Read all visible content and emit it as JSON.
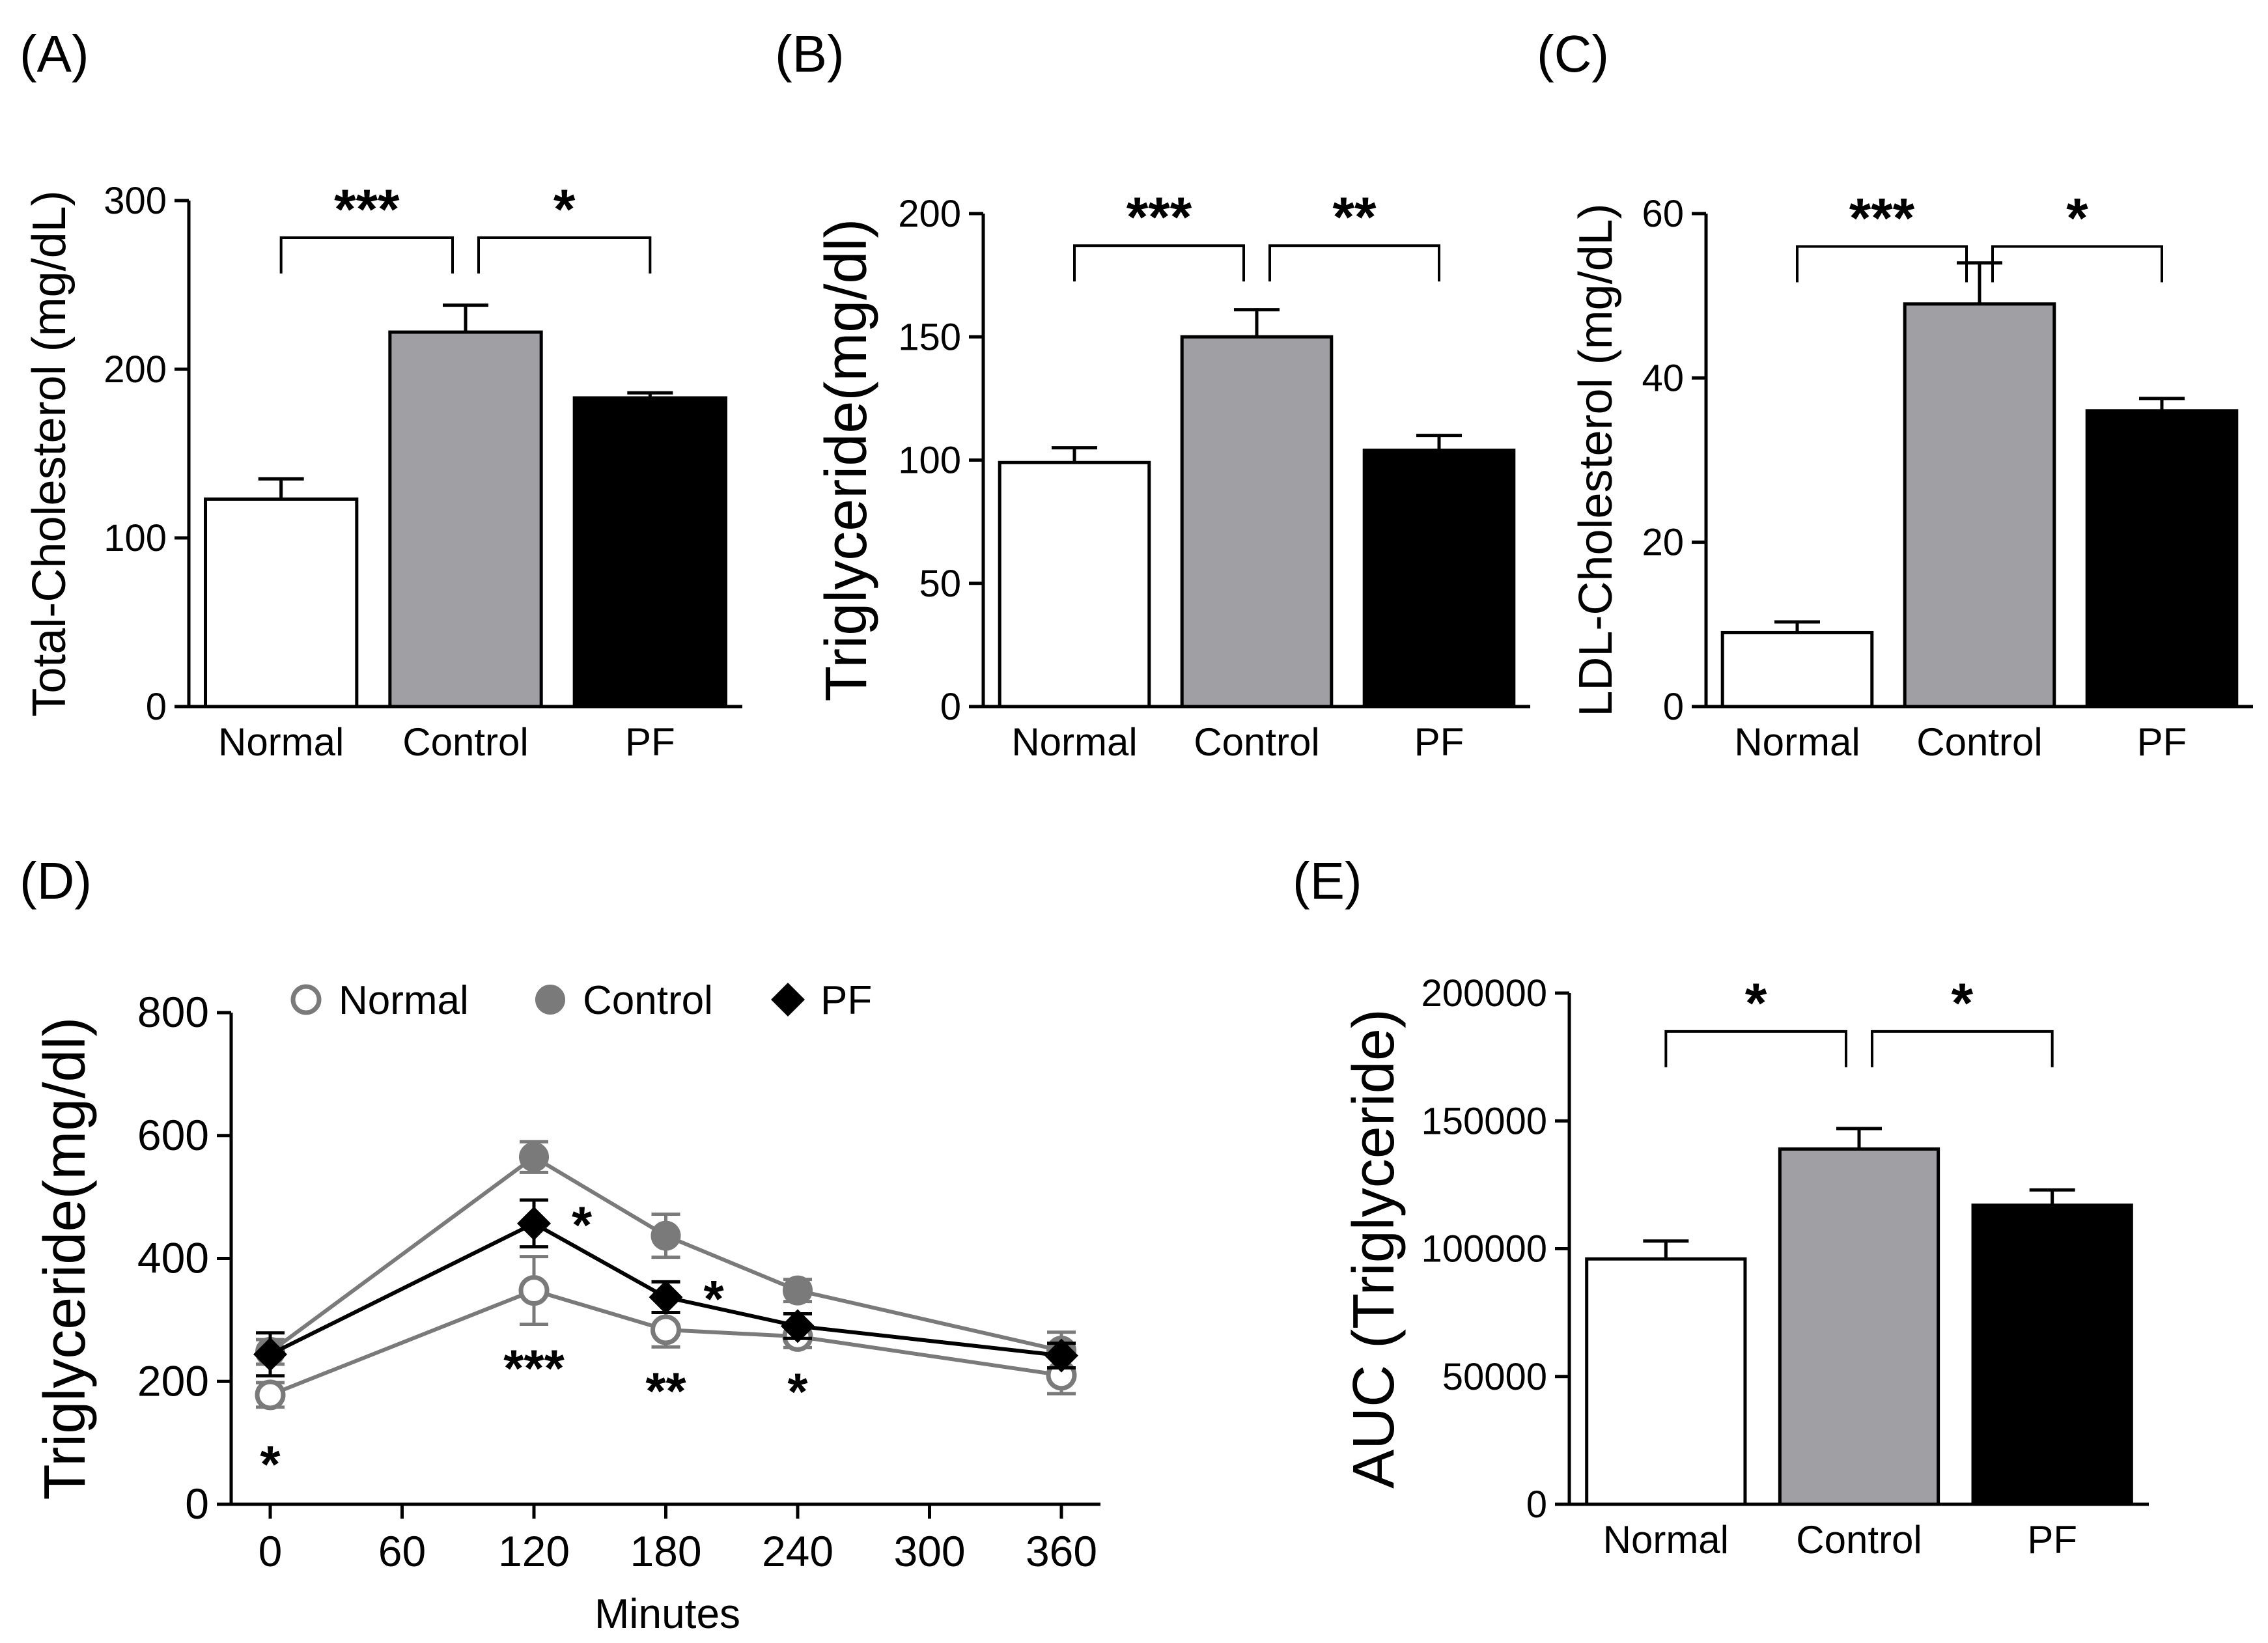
{
  "chart_data": [
    {
      "panel": "(A)",
      "type": "bar",
      "categories": [
        "Normal",
        "Control",
        "PF"
      ],
      "values": [
        123,
        222,
        183
      ],
      "errors": [
        12,
        16,
        3
      ],
      "colors": [
        "#ffffff",
        "#a0a0a4",
        "#000000"
      ],
      "ylabel": "Total-Cholesterol (mg/dL)",
      "ylim": [
        0,
        300
      ],
      "yticks": [
        0,
        100,
        200,
        300
      ],
      "significance": [
        {
          "from": 0,
          "to": 1,
          "label": "***",
          "y": 278
        },
        {
          "from": 1,
          "to": 2,
          "label": "*",
          "y": 278
        }
      ]
    },
    {
      "panel": "(B)",
      "type": "bar",
      "categories": [
        "Normal",
        "Control",
        "PF"
      ],
      "values": [
        99,
        150,
        104
      ],
      "errors": [
        6,
        11,
        6
      ],
      "colors": [
        "#ffffff",
        "#a0a0a4",
        "#000000"
      ],
      "ylabel": "Triglyceride(mg/dl)",
      "ylim": [
        0,
        200
      ],
      "yticks": [
        0,
        50,
        100,
        150,
        200
      ],
      "significance": [
        {
          "from": 0,
          "to": 1,
          "label": "***",
          "y": 187
        },
        {
          "from": 1,
          "to": 2,
          "label": "**",
          "y": 187
        }
      ]
    },
    {
      "panel": "(C)",
      "type": "bar",
      "categories": [
        "Normal",
        "Control",
        "PF"
      ],
      "values": [
        9,
        49,
        36
      ],
      "errors": [
        1.3,
        5,
        1.5
      ],
      "colors": [
        "#ffffff",
        "#a0a0a4",
        "#000000"
      ],
      "ylabel": "LDL-Cholesterol (mg/dL)",
      "ylim": [
        0,
        60
      ],
      "yticks": [
        0,
        20,
        40,
        60
      ],
      "significance": [
        {
          "from": 0,
          "to": 1,
          "label": "***",
          "y": 56
        },
        {
          "from": 1,
          "to": 2,
          "label": "*",
          "y": 56
        }
      ]
    },
    {
      "panel": "(D)",
      "type": "line",
      "x": [
        0,
        120,
        180,
        240,
        360
      ],
      "xticks": [
        0,
        60,
        120,
        180,
        240,
        300,
        360
      ],
      "xlabel": "Minutes",
      "ylabel": "Triglyceride(mg/dl)",
      "ylim": [
        0,
        800
      ],
      "yticks": [
        0,
        200,
        400,
        600,
        800
      ],
      "series": [
        {
          "name": "Normal",
          "values": [
            178,
            348,
            284,
            273,
            210
          ],
          "errors": [
            20,
            55,
            28,
            18,
            30
          ],
          "color": "#7a7a7a",
          "marker": "open-circle"
        },
        {
          "name": "Control",
          "values": [
            248,
            565,
            437,
            348,
            250
          ],
          "errors": [
            20,
            25,
            35,
            18,
            30
          ],
          "color": "#7a7a7a",
          "marker": "filled-circle"
        },
        {
          "name": "PF",
          "values": [
            244,
            457,
            337,
            290,
            242
          ],
          "errors": [
            35,
            38,
            25,
            20,
            20
          ],
          "color": "#000000",
          "marker": "diamond"
        }
      ],
      "annotations": [
        {
          "x": 0,
          "label": "*",
          "position": "below"
        },
        {
          "x": 120,
          "label": "***",
          "position": "below"
        },
        {
          "x": 180,
          "label": "**",
          "position": "below"
        },
        {
          "x": 240,
          "label": "*",
          "position": "below"
        },
        {
          "x": 120,
          "label": "*",
          "position": "right-of-PF"
        },
        {
          "x": 180,
          "label": "*",
          "position": "right-of-PF"
        }
      ]
    },
    {
      "panel": "(E)",
      "type": "bar",
      "categories": [
        "Normal",
        "Control",
        "PF"
      ],
      "values": [
        96000,
        139000,
        117000
      ],
      "errors": [
        7000,
        8000,
        6000
      ],
      "colors": [
        "#ffffff",
        "#a0a0a4",
        "#000000"
      ],
      "ylabel": "AUC (Triglyceride)",
      "ylim": [
        0,
        200000
      ],
      "yticks": [
        0,
        50000,
        100000,
        150000,
        200000
      ],
      "significance": [
        {
          "from": 0,
          "to": 1,
          "label": "*",
          "y": 185000
        },
        {
          "from": 1,
          "to": 2,
          "label": "*",
          "y": 185000
        }
      ]
    }
  ]
}
